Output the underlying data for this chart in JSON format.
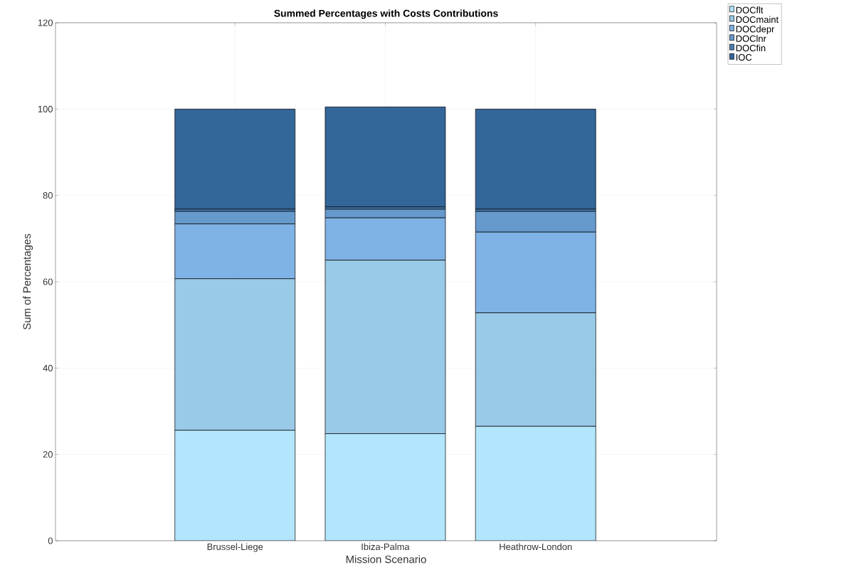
{
  "chart_data": {
    "type": "bar",
    "title": "Summed Percentages with Costs Contributions",
    "xlabel": "Mission Scenario",
    "ylabel": "Sum of Percentages",
    "categories": [
      "Brussel-Liege",
      "Ibiza-Palma",
      "Heathrow-London"
    ],
    "stacked": true,
    "series": [
      {
        "name": "DOCflt",
        "color": "#b3e6fc",
        "values": [
          25.6,
          24.8,
          26.5
        ]
      },
      {
        "name": "DOCmaint",
        "color": "#99cae7",
        "values": [
          35.1,
          40.2,
          26.3
        ]
      },
      {
        "name": "DOCdepr",
        "color": "#7fb2e5",
        "values": [
          12.7,
          9.8,
          18.7
        ]
      },
      {
        "name": "DOClnr",
        "color": "#6699cc",
        "values": [
          2.9,
          2.0,
          4.8
        ]
      },
      {
        "name": "DOCfin",
        "color": "#4c7fb2",
        "values": [
          0.5,
          0.5,
          0.5
        ]
      },
      {
        "name": "IOC",
        "color": "#336699",
        "values": [
          23.2,
          23.2,
          23.2
        ]
      }
    ],
    "ylim": [
      0,
      120
    ],
    "yticks": [
      0,
      20,
      40,
      60,
      80,
      100,
      120
    ],
    "grid": true,
    "legend": "top right"
  }
}
